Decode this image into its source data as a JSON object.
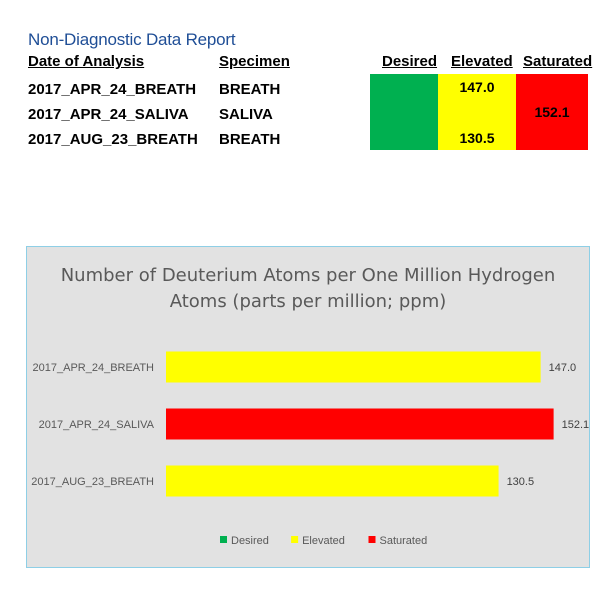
{
  "report": {
    "title": "Non-Diagnostic Data Report",
    "columns": {
      "date": "Date of Analysis",
      "specimen": "Specimen",
      "desired": "Desired",
      "elevated": "Elevated",
      "saturated": "Saturated"
    },
    "rows": [
      {
        "date": "2017_APR_24_BREATH",
        "specimen": "BREATH",
        "value": "147.0",
        "level": "elevated"
      },
      {
        "date": "2017_APR_24_SALIVA",
        "specimen": "SALIVA",
        "value": "152.1",
        "level": "saturated"
      },
      {
        "date": "2017_AUG_23_BREATH",
        "specimen": "BREATH",
        "value": "130.5",
        "level": "elevated"
      }
    ]
  },
  "colors": {
    "desired": "#00b050",
    "elevated": "#ffff00",
    "saturated": "#ff0000"
  },
  "chart_data": {
    "type": "bar",
    "orientation": "horizontal",
    "title_line1": "Number of Deuterium Atoms per One Million Hydrogen",
    "title_line2": "Atoms (parts per million; ppm)",
    "categories": [
      "2017_APR_24_BREATH",
      "2017_APR_24_SALIVA",
      "2017_AUG_23_BREATH"
    ],
    "values": [
      147.0,
      152.1,
      130.5
    ],
    "value_labels": [
      "147.0",
      "152.1",
      "130.5"
    ],
    "bar_levels": [
      "Elevated",
      "Saturated",
      "Elevated"
    ],
    "xlim": [
      0,
      155
    ],
    "grid": false,
    "legend_position": "bottom",
    "legend": [
      "Desired",
      "Elevated",
      "Saturated"
    ]
  }
}
